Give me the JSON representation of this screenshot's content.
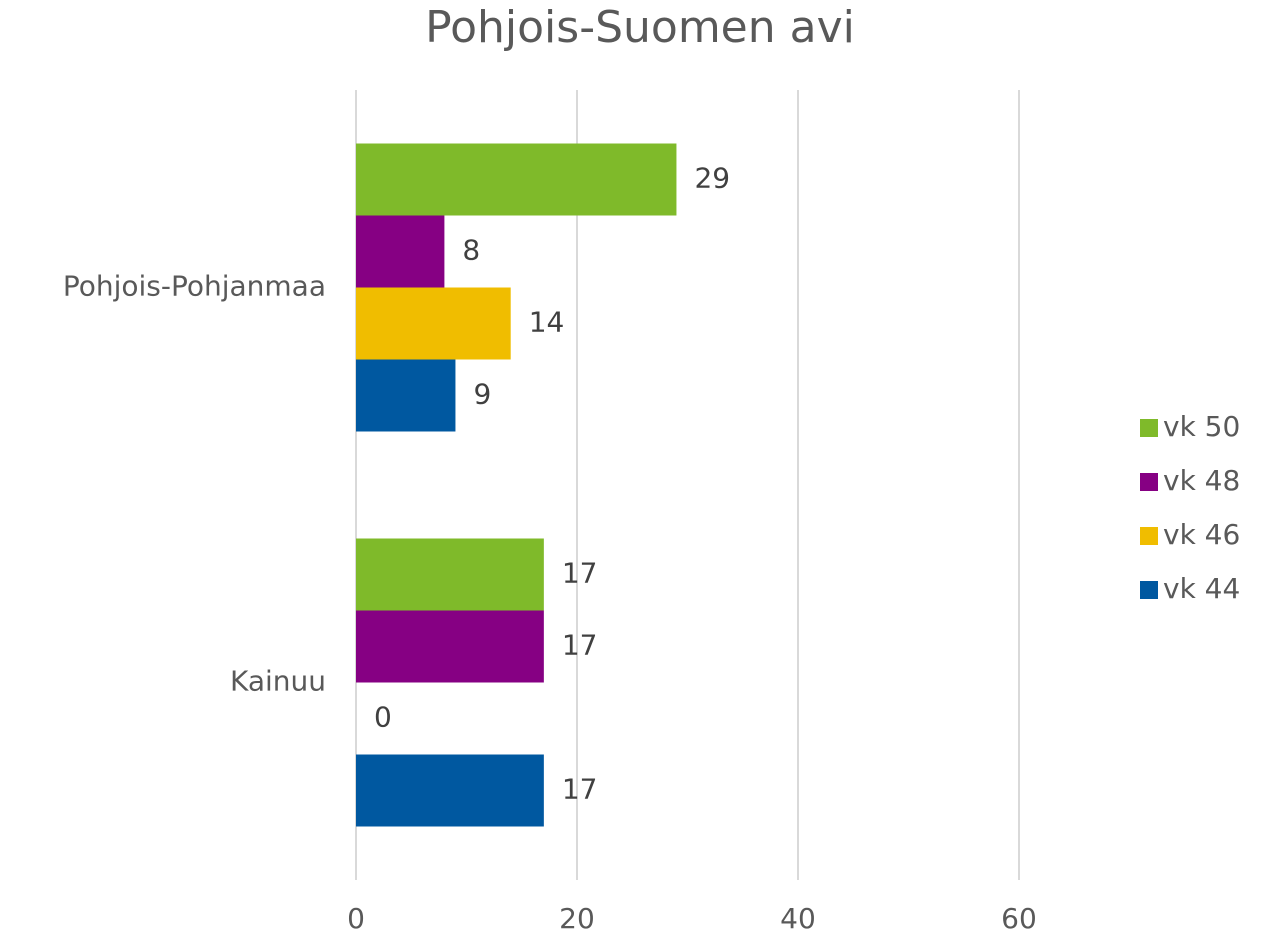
{
  "chart_data": {
    "type": "hbar",
    "title": "Pohjois-Suomen avi",
    "categories": [
      "Pohjois-Pohjanmaa",
      "Kainuu"
    ],
    "series": [
      {
        "name": "vk 50",
        "color": "#7fba2a",
        "values": [
          29,
          17
        ]
      },
      {
        "name": "vk 48",
        "color": "#860083",
        "values": [
          8,
          17
        ]
      },
      {
        "name": "vk 46",
        "color": "#f0bd00",
        "values": [
          14,
          0
        ]
      },
      {
        "name": "vk 44",
        "color": "#0058a0",
        "values": [
          9,
          17
        ]
      }
    ],
    "xlim": [
      0,
      70
    ],
    "xticks": [
      0,
      20,
      40,
      60
    ],
    "grid": true,
    "legend": "right"
  }
}
